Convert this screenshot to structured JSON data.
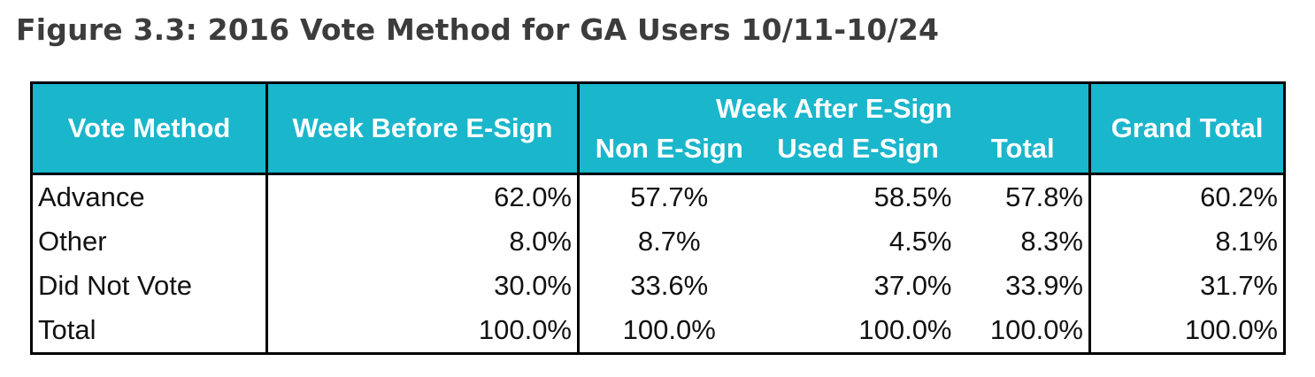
{
  "title": "Figure 3.3: 2016 Vote Method for GA Users 10/11-10/24",
  "colors": {
    "header_background": "#1ab6cc",
    "header_text": "#ffffff",
    "border": "#000000",
    "title_text": "#3c3c3c"
  },
  "chart_data": {
    "type": "table",
    "title": "Figure 3.3: 2016 Vote Method for GA Users 10/11-10/24",
    "header": {
      "row_label": "Vote Method",
      "week_before": "Week Before E-Sign",
      "week_after_group": "Week After E-Sign",
      "week_after_sub": [
        "Non E-Sign",
        "Used E-Sign",
        "Total"
      ],
      "grand_total": "Grand Total"
    },
    "columns": [
      "Week Before E-Sign",
      "Non E-Sign",
      "Used E-Sign",
      "Total",
      "Grand Total"
    ],
    "rows": [
      {
        "label": "Advance",
        "values": [
          "62.0%",
          "57.7%",
          "58.5%",
          "57.8%",
          "60.2%"
        ]
      },
      {
        "label": "Other",
        "values": [
          "8.0%",
          "8.7%",
          "4.5%",
          "8.3%",
          "8.1%"
        ]
      },
      {
        "label": "Did Not Vote",
        "values": [
          "30.0%",
          "33.6%",
          "37.0%",
          "33.9%",
          "31.7%"
        ]
      },
      {
        "label": "Total",
        "values": [
          "100.0%",
          "100.0%",
          "100.0%",
          "100.0%",
          "100.0%"
        ]
      }
    ]
  }
}
